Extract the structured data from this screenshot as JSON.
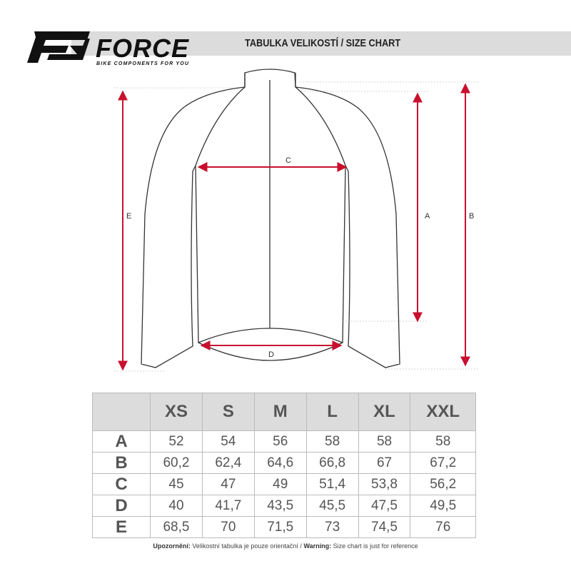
{
  "brand": {
    "name": "FORCE",
    "tagline": "BIKE COMPONENTS FOR YOU"
  },
  "header": {
    "title": "TABULKA VELIKOSTÍ / SIZE CHART"
  },
  "diagram": {
    "labels": {
      "A": "A",
      "B": "B",
      "C": "C",
      "D": "D",
      "E": "E"
    },
    "arrow_color": "#c8102e"
  },
  "table": {
    "columns": [
      "XS",
      "S",
      "M",
      "L",
      "XL",
      "XXL"
    ],
    "rows": [
      {
        "label": "A",
        "values": [
          "52",
          "54",
          "56",
          "58",
          "58",
          "58"
        ]
      },
      {
        "label": "B",
        "values": [
          "60,2",
          "62,4",
          "64,6",
          "66,8",
          "67",
          "67,2"
        ]
      },
      {
        "label": "C",
        "values": [
          "45",
          "47",
          "49",
          "51,4",
          "53,8",
          "56,2"
        ]
      },
      {
        "label": "D",
        "values": [
          "40",
          "41,7",
          "43,5",
          "45,5",
          "47,5",
          "49,5"
        ]
      },
      {
        "label": "E",
        "values": [
          "68,5",
          "70",
          "71,5",
          "73",
          "74,5",
          "76"
        ]
      }
    ]
  },
  "footer": {
    "warn_cz_label": "Upozornění:",
    "warn_cz_text": " Velikostní tabulka je pouze orientační / ",
    "warn_en_label": "Warning:",
    "warn_en_text": " Size chart is just for reference"
  }
}
